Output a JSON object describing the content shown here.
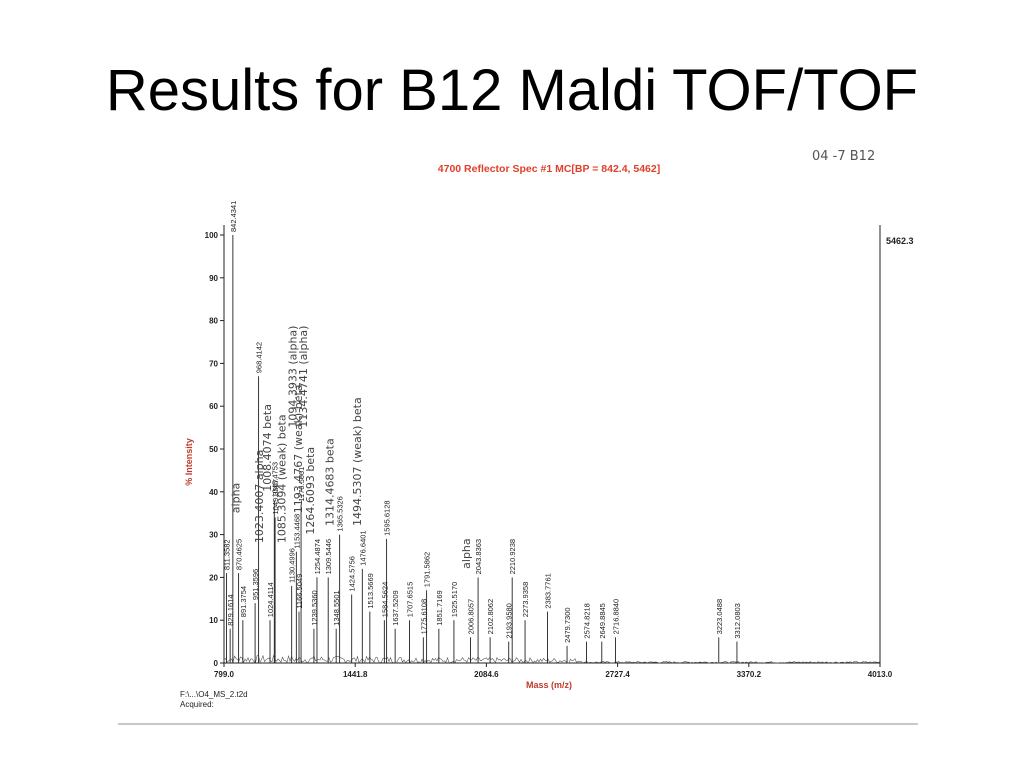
{
  "slide": {
    "title": "Results for B12 Maldi TOF/TOF"
  },
  "chart_data": {
    "type": "line",
    "title": "4700 Reflector Spec #1 MC[BP = 842.4, 5462]",
    "handwritten_note": "04 -7 B12",
    "ylabel": "% Intensity",
    "xlabel": "Mass (m/z)",
    "xlim": [
      799.0,
      4013.0
    ],
    "ylim": [
      0,
      100
    ],
    "x_ticks": [
      "799.0",
      "1441.8",
      "2084.6",
      "2727.4",
      "3370.2",
      "4013.0"
    ],
    "y_ticks": [
      "0",
      "10",
      "20",
      "30",
      "40",
      "50",
      "60",
      "70",
      "80",
      "90",
      "100"
    ],
    "max_intensity_label": "5462.3",
    "file_path": "F:\\...\\O4_MS_2.t2d",
    "acquired_label": "Acquired:",
    "colors": {
      "title": "#e0402a",
      "axis_label": "#c0392b",
      "trace": "#222222",
      "ink": "#444444"
    },
    "peaks": [
      {
        "mz": 811.3582,
        "intensity": 21,
        "label": "811.3582"
      },
      {
        "mz": 829.1614,
        "intensity": 8,
        "label": "829.1614"
      },
      {
        "mz": 842.4341,
        "intensity": 100,
        "label": "842.4341"
      },
      {
        "mz": 870.4625,
        "intensity": 21,
        "label": "870.4625"
      },
      {
        "mz": 891.3754,
        "intensity": 10,
        "label": "891.3754"
      },
      {
        "mz": 951.3596,
        "intensity": 14,
        "label": "951.3596"
      },
      {
        "mz": 968.4142,
        "intensity": 67,
        "label": "968.4142"
      },
      {
        "mz": 1024.4114,
        "intensity": 10,
        "label": "1024.4114"
      },
      {
        "mz": 1045.4753,
        "intensity": 38,
        "label": "1045.4753"
      },
      {
        "mz": 1049.3567,
        "intensity": 34,
        "label": "1049.3567"
      },
      {
        "mz": 1130.4996,
        "intensity": 18,
        "label": "1130.4996"
      },
      {
        "mz": 1153.4468,
        "intensity": 26,
        "label": "1153.4468"
      },
      {
        "mz": 1166.5049,
        "intensity": 12,
        "label": "1166.5049"
      },
      {
        "mz": 1176.5061,
        "intensity": 37,
        "label": "1176.5061"
      },
      {
        "mz": 1239.536,
        "intensity": 8,
        "label": "1239.5360"
      },
      {
        "mz": 1254.4874,
        "intensity": 20,
        "label": "1254.4874"
      },
      {
        "mz": 1309.5446,
        "intensity": 20,
        "label": "1309.5446"
      },
      {
        "mz": 1348.5501,
        "intensity": 8,
        "label": "1348.5501"
      },
      {
        "mz": 1365.5326,
        "intensity": 30,
        "label": "1365.5326"
      },
      {
        "mz": 1424.5756,
        "intensity": 16,
        "label": "1424.5756"
      },
      {
        "mz": 1476.6401,
        "intensity": 22,
        "label": "1476.6401"
      },
      {
        "mz": 1513.5669,
        "intensity": 12,
        "label": "1513.5669"
      },
      {
        "mz": 1584.5624,
        "intensity": 10,
        "label": "1584.5624"
      },
      {
        "mz": 1595.6128,
        "intensity": 29,
        "label": "1595.6128"
      },
      {
        "mz": 1637.5209,
        "intensity": 8,
        "label": "1637.5209"
      },
      {
        "mz": 1707.6515,
        "intensity": 10,
        "label": "1707.6515"
      },
      {
        "mz": 1775.6108,
        "intensity": 6,
        "label": "1775.6108"
      },
      {
        "mz": 1791.5862,
        "intensity": 17,
        "label": "1791.5862"
      },
      {
        "mz": 1851.7169,
        "intensity": 8,
        "label": "1851.7169"
      },
      {
        "mz": 1925.517,
        "intensity": 10,
        "label": "1925.5170"
      },
      {
        "mz": 2006.8057,
        "intensity": 6,
        "label": "2006.8057"
      },
      {
        "mz": 2043.8363,
        "intensity": 20,
        "label": "2043.8363"
      },
      {
        "mz": 2102.8062,
        "intensity": 6,
        "label": "2102.8062"
      },
      {
        "mz": 2193.958,
        "intensity": 5,
        "label": "2193.9580"
      },
      {
        "mz": 2210.9238,
        "intensity": 20,
        "label": "2210.9238"
      },
      {
        "mz": 2273.9358,
        "intensity": 10,
        "label": "2273.9358"
      },
      {
        "mz": 2383.7761,
        "intensity": 12,
        "label": "2383.7761"
      },
      {
        "mz": 2479.73,
        "intensity": 4,
        "label": "2479.7300"
      },
      {
        "mz": 2574.8218,
        "intensity": 5,
        "label": "2574.8218"
      },
      {
        "mz": 2649.8845,
        "intensity": 5,
        "label": "2649.8845"
      },
      {
        "mz": 2716.884,
        "intensity": 6,
        "label": "2716.8840"
      },
      {
        "mz": 3223.0488,
        "intensity": 6,
        "label": "3223.0488"
      },
      {
        "mz": 3312.0803,
        "intensity": 5,
        "label": "3312.0803"
      }
    ],
    "annotations": [
      {
        "text": "alpha",
        "mz": 875,
        "intensity": 35
      },
      {
        "text": "1023.4007 alpha",
        "mz": 990,
        "intensity": 28
      },
      {
        "text": "1008.4074 beta",
        "mz": 1030,
        "intensity": 40
      },
      {
        "text": "1085.3094 (weak) beta",
        "mz": 1100,
        "intensity": 28
      },
      {
        "text": "1094.3933 (alpha)",
        "mz": 1155,
        "intensity": 55
      },
      {
        "text": "1134.4741 (alpha)",
        "mz": 1205,
        "intensity": 55
      },
      {
        "text": "1193.4767 (weak) beta",
        "mz": 1180,
        "intensity": 35
      },
      {
        "text": "1264.6093 beta",
        "mz": 1240,
        "intensity": 30
      },
      {
        "text": "1314.4683 beta",
        "mz": 1335,
        "intensity": 32
      },
      {
        "text": "1494.5307 (weak) beta",
        "mz": 1470,
        "intensity": 32
      },
      {
        "text": "alpha",
        "mz": 2005,
        "intensity": 22
      }
    ]
  }
}
